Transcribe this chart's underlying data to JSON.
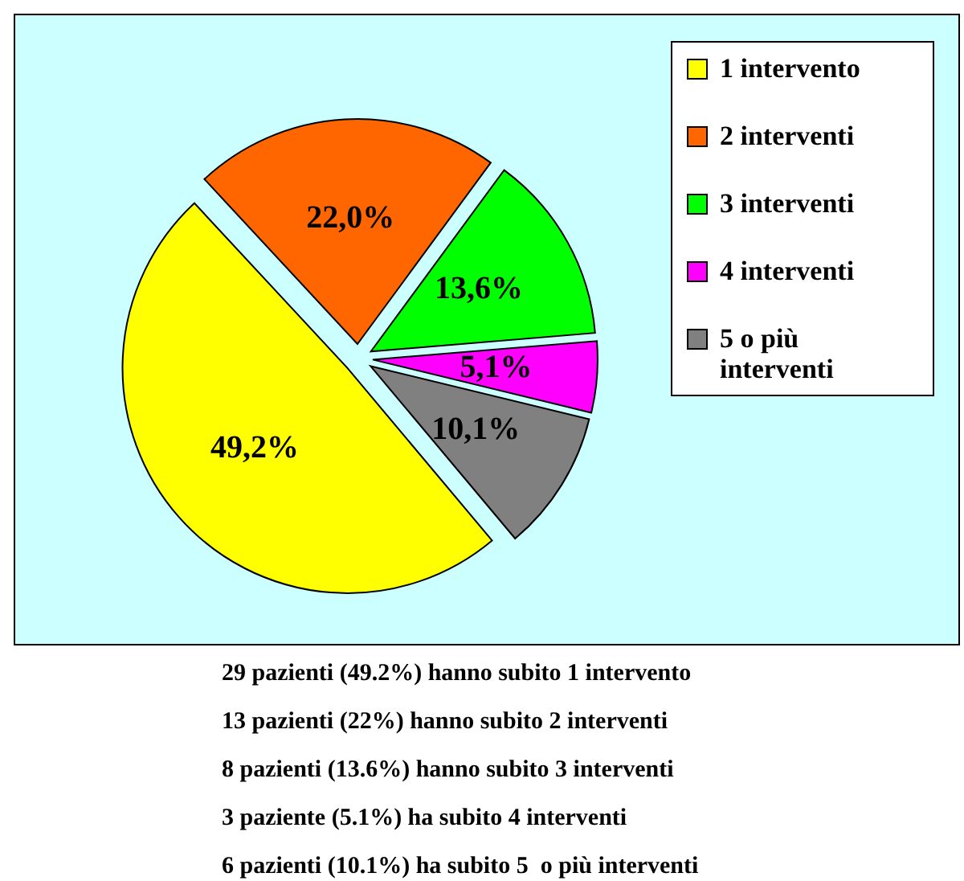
{
  "chart_data": {
    "type": "pie",
    "categories": [
      "1 intervento",
      "2 interventi",
      "3 interventi",
      "4 interventi",
      "5 o più interventi"
    ],
    "values": [
      49.2,
      22.0,
      13.6,
      5.1,
      10.1
    ],
    "value_labels": [
      "49,2%",
      "22,0%",
      "13,6%",
      "5,1%",
      "10,1%"
    ],
    "colors": [
      "#ffff00",
      "#ff6600",
      "#00ff00",
      "#ff00ff",
      "#808080"
    ],
    "legend": "right",
    "annotations": [
      "29 pazienti (49.2%) hanno subito 1 intervento",
      "13 pazienti (22%) hanno subito 2 interventi",
      "8 pazienti (13.6%) hanno subito 3 interventi",
      "3 paziente (5.1%) ha subito 4 interventi",
      "6 pazienti (10.1%) ha subito 5  o più interventi"
    ]
  }
}
